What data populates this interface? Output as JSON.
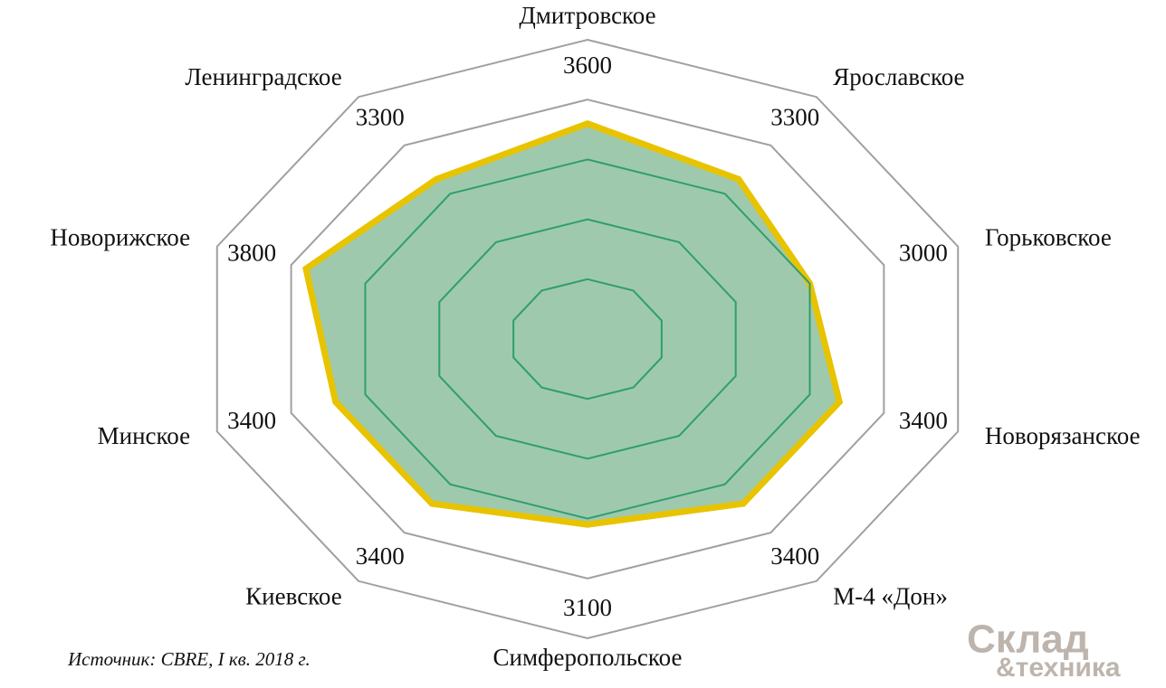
{
  "chart_data": {
    "type": "radar",
    "categories": [
      "Дмитровское",
      "Ярославское",
      "Горьковское",
      "Новорязанское",
      "М-4 «Дон»",
      "Симферопольское",
      "Киевское",
      "Минское",
      "Новорижское",
      "Ленинградское"
    ],
    "values": [
      3600,
      3300,
      3000,
      3400,
      3400,
      3100,
      3400,
      3400,
      3800,
      3300
    ],
    "color": "#e8c300",
    "fill": "#9fc9ad",
    "rlim": [
      0,
      5000
    ],
    "rticks": [
      1000,
      2000,
      3000,
      4000,
      5000
    ],
    "grid": true
  },
  "source": "Источник: CBRE, I кв. 2018 г.",
  "logo": {
    "line1": "Склад",
    "line2": "&техника"
  }
}
